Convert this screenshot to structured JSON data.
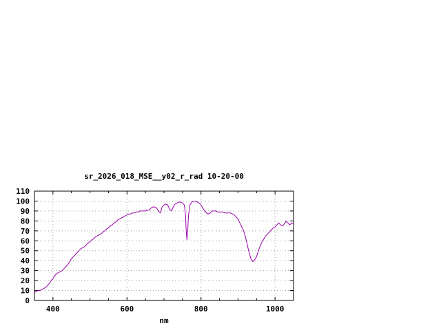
{
  "page": {
    "background": "#ffffff"
  },
  "chart_data": {
    "type": "line",
    "title": "sr_2026_018_MSE__y02_r_rad 10-20-00",
    "xlabel": "nm",
    "ylabel": "",
    "xlim": [
      350,
      1050
    ],
    "ylim": [
      0,
      110
    ],
    "xticks": [
      400,
      600,
      800,
      1000
    ],
    "x_minor_step": 50,
    "yticks": [
      0,
      10,
      20,
      30,
      40,
      50,
      60,
      70,
      80,
      90,
      100,
      110
    ],
    "grid": true,
    "legend_position": "none",
    "colors": {
      "line": "#9900aa",
      "grid": "#a0a0a0",
      "axis": "#000000",
      "text": "#000000"
    },
    "series": [
      {
        "name": "sr_2026_018_MSE__y02_r_rad",
        "points": [
          [
            350,
            8
          ],
          [
            355,
            9
          ],
          [
            360,
            10
          ],
          [
            365,
            10
          ],
          [
            370,
            11
          ],
          [
            375,
            12
          ],
          [
            380,
            13
          ],
          [
            385,
            15
          ],
          [
            390,
            17
          ],
          [
            395,
            20
          ],
          [
            400,
            22
          ],
          [
            405,
            25
          ],
          [
            410,
            27
          ],
          [
            415,
            28
          ],
          [
            420,
            29
          ],
          [
            425,
            30
          ],
          [
            430,
            32
          ],
          [
            435,
            34
          ],
          [
            440,
            36
          ],
          [
            445,
            39
          ],
          [
            450,
            42
          ],
          [
            455,
            44
          ],
          [
            460,
            46
          ],
          [
            465,
            48
          ],
          [
            470,
            50
          ],
          [
            475,
            52
          ],
          [
            480,
            53
          ],
          [
            485,
            54
          ],
          [
            490,
            56
          ],
          [
            495,
            58
          ],
          [
            500,
            59
          ],
          [
            505,
            61
          ],
          [
            510,
            62
          ],
          [
            515,
            64
          ],
          [
            520,
            65
          ],
          [
            525,
            66
          ],
          [
            530,
            67
          ],
          [
            535,
            69
          ],
          [
            540,
            70
          ],
          [
            545,
            72
          ],
          [
            550,
            73
          ],
          [
            555,
            75
          ],
          [
            560,
            76
          ],
          [
            565,
            78
          ],
          [
            570,
            79
          ],
          [
            575,
            81
          ],
          [
            580,
            82
          ],
          [
            585,
            83
          ],
          [
            590,
            84
          ],
          [
            595,
            85
          ],
          [
            600,
            86
          ],
          [
            605,
            87
          ],
          [
            610,
            87
          ],
          [
            615,
            88
          ],
          [
            620,
            88
          ],
          [
            625,
            89
          ],
          [
            630,
            89
          ],
          [
            635,
            90
          ],
          [
            640,
            90
          ],
          [
            645,
            90
          ],
          [
            650,
            90
          ],
          [
            655,
            91
          ],
          [
            660,
            91
          ],
          [
            665,
            93
          ],
          [
            670,
            94
          ],
          [
            675,
            94
          ],
          [
            680,
            93
          ],
          [
            685,
            90
          ],
          [
            690,
            88
          ],
          [
            695,
            94
          ],
          [
            700,
            96
          ],
          [
            705,
            97
          ],
          [
            710,
            96
          ],
          [
            715,
            92
          ],
          [
            720,
            90
          ],
          [
            725,
            94
          ],
          [
            730,
            97
          ],
          [
            735,
            98
          ],
          [
            740,
            99
          ],
          [
            745,
            99
          ],
          [
            750,
            98
          ],
          [
            755,
            96
          ],
          [
            758,
            86
          ],
          [
            760,
            70
          ],
          [
            762,
            61
          ],
          [
            764,
            70
          ],
          [
            766,
            85
          ],
          [
            770,
            96
          ],
          [
            775,
            99
          ],
          [
            780,
            100
          ],
          [
            785,
            100
          ],
          [
            790,
            99
          ],
          [
            795,
            98
          ],
          [
            800,
            96
          ],
          [
            805,
            93
          ],
          [
            810,
            90
          ],
          [
            815,
            88
          ],
          [
            820,
            87
          ],
          [
            825,
            88
          ],
          [
            830,
            90
          ],
          [
            835,
            90
          ],
          [
            840,
            90
          ],
          [
            845,
            89
          ],
          [
            850,
            89
          ],
          [
            855,
            89
          ],
          [
            860,
            89
          ],
          [
            865,
            88
          ],
          [
            870,
            88
          ],
          [
            875,
            88
          ],
          [
            880,
            88
          ],
          [
            885,
            87
          ],
          [
            890,
            86
          ],
          [
            895,
            84
          ],
          [
            900,
            82
          ],
          [
            905,
            78
          ],
          [
            910,
            74
          ],
          [
            915,
            70
          ],
          [
            920,
            64
          ],
          [
            925,
            56
          ],
          [
            930,
            48
          ],
          [
            935,
            42
          ],
          [
            940,
            39
          ],
          [
            945,
            41
          ],
          [
            950,
            44
          ],
          [
            955,
            50
          ],
          [
            960,
            55
          ],
          [
            965,
            59
          ],
          [
            970,
            62
          ],
          [
            975,
            65
          ],
          [
            980,
            67
          ],
          [
            985,
            69
          ],
          [
            990,
            71
          ],
          [
            995,
            73
          ],
          [
            1000,
            74
          ],
          [
            1005,
            76
          ],
          [
            1010,
            78
          ],
          [
            1015,
            76
          ],
          [
            1020,
            75
          ],
          [
            1025,
            77
          ],
          [
            1030,
            80
          ],
          [
            1035,
            78
          ],
          [
            1040,
            76
          ],
          [
            1045,
            78
          ],
          [
            1050,
            77
          ]
        ]
      }
    ]
  }
}
